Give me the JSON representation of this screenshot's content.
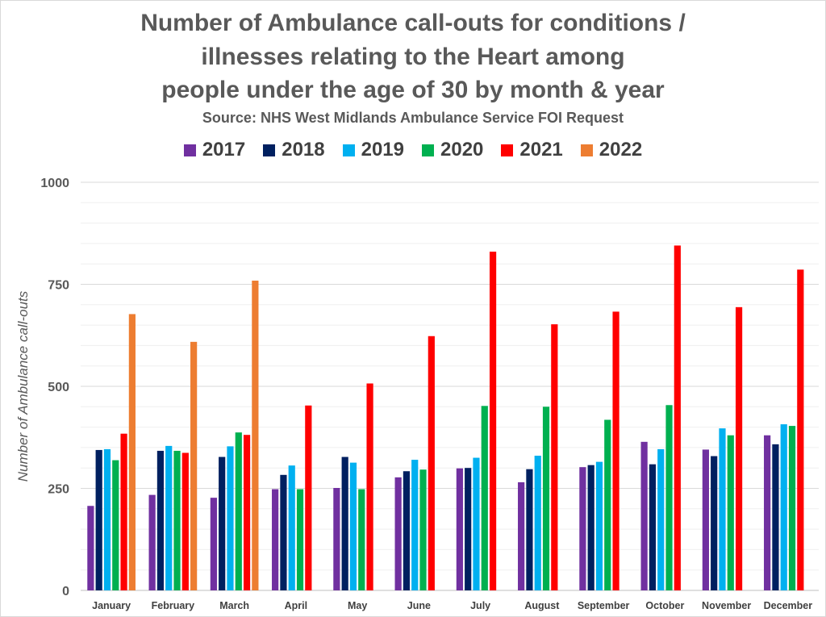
{
  "chart_data": {
    "type": "bar",
    "title_lines": [
      "Number of Ambulance call-outs for conditions /",
      "illnesses relating to the Heart among",
      "people under the age of 30 by month & year"
    ],
    "subtitle": "Source: NHS West Midlands Ambulance Service FOI Request",
    "xlabel": "",
    "ylabel": "Number of Ambulance call-outs",
    "ylim": [
      0,
      1000
    ],
    "yticks": [
      0,
      250,
      500,
      750,
      1000
    ],
    "grid": true,
    "legend_position": "top-center",
    "categories": [
      "January",
      "February",
      "March",
      "April",
      "May",
      "June",
      "July",
      "August",
      "September",
      "October",
      "November",
      "December"
    ],
    "series": [
      {
        "name": "2017",
        "color": "#7030a0",
        "values": [
          207,
          234,
          227,
          248,
          251,
          277,
          299,
          265,
          302,
          364,
          345,
          380
        ]
      },
      {
        "name": "2018",
        "color": "#002060",
        "values": [
          344,
          342,
          327,
          283,
          327,
          292,
          300,
          297,
          307,
          309,
          329,
          358
        ]
      },
      {
        "name": "2019",
        "color": "#00b0f0",
        "values": [
          346,
          354,
          353,
          306,
          313,
          320,
          325,
          330,
          315,
          346,
          397,
          407
        ]
      },
      {
        "name": "2020",
        "color": "#00b050",
        "values": [
          319,
          342,
          387,
          248,
          248,
          296,
          452,
          450,
          418,
          454,
          380,
          403
        ]
      },
      {
        "name": "2021",
        "color": "#ff0000",
        "values": [
          384,
          337,
          381,
          453,
          507,
          623,
          830,
          652,
          683,
          845,
          694,
          786
        ]
      },
      {
        "name": "2022",
        "color": "#ed7d31",
        "values": [
          677,
          609,
          759,
          null,
          null,
          null,
          null,
          null,
          null,
          null,
          null,
          null
        ]
      }
    ]
  }
}
